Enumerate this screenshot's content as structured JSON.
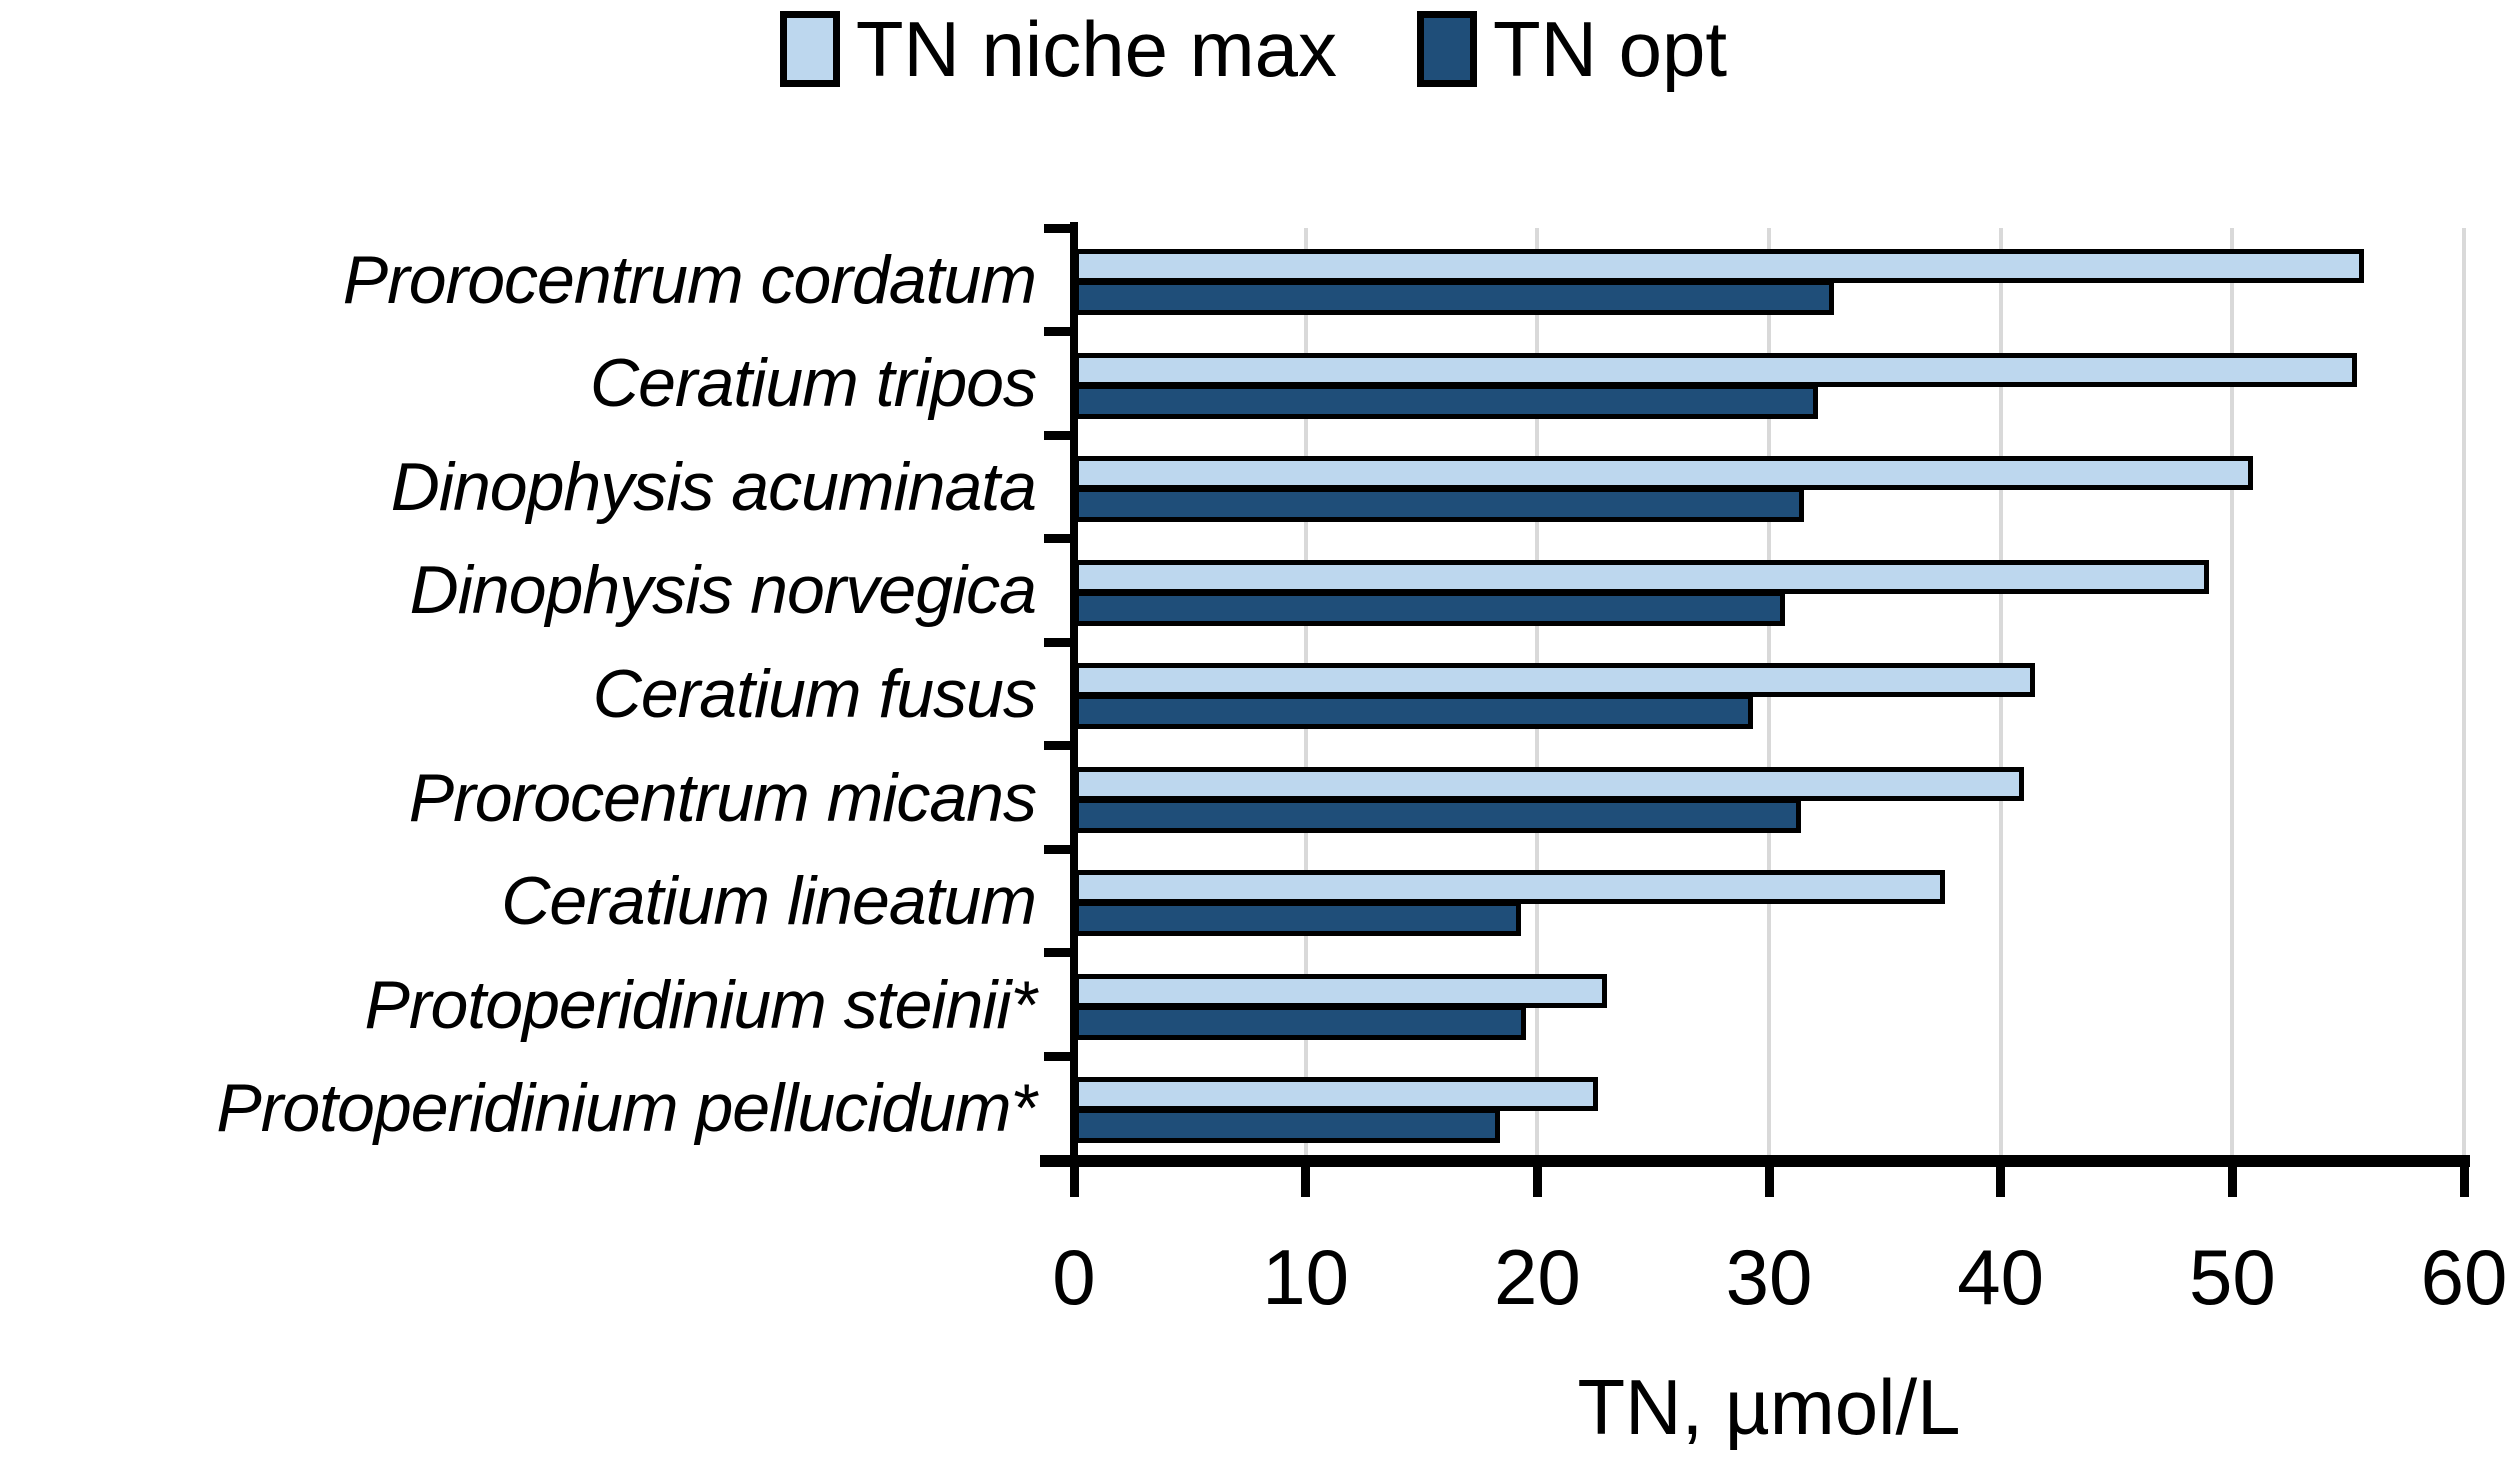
{
  "legend": {
    "items": [
      {
        "label": "TN niche max",
        "color": "#BDD7EE"
      },
      {
        "label": "TN opt",
        "color": "#1F4E79"
      }
    ]
  },
  "chart_data": {
    "type": "bar",
    "orientation": "horizontal",
    "title": "",
    "xlabel": "TN, µmol/L",
    "ylabel": "",
    "categories": [
      "Prorocentrum cordatum",
      "Ceratium tripos",
      "Dinophysis acuminata",
      "Dinophysis norvegica",
      "Ceratium fusus",
      "Prorocentrum micans",
      "Ceratium lineatum",
      "Protoperidinium steinii*",
      "Protoperidinium pellucidum*"
    ],
    "series": [
      {
        "name": "TN niche max",
        "color": "#BDD7EE",
        "values": [
          55.7,
          55.4,
          50.9,
          49.0,
          41.5,
          41.0,
          37.6,
          23.0,
          22.6
        ]
      },
      {
        "name": "TN opt",
        "color": "#1F4E79",
        "values": [
          32.8,
          32.1,
          31.5,
          30.7,
          29.3,
          31.4,
          19.3,
          19.5,
          18.4
        ]
      }
    ],
    "xlim": [
      0,
      60
    ],
    "xticks": [
      0,
      10,
      20,
      30,
      40,
      50,
      60
    ],
    "grid": true,
    "gridline_color": "#D9D9D9",
    "bar_border_color": "#000000",
    "legend_position": "top"
  }
}
